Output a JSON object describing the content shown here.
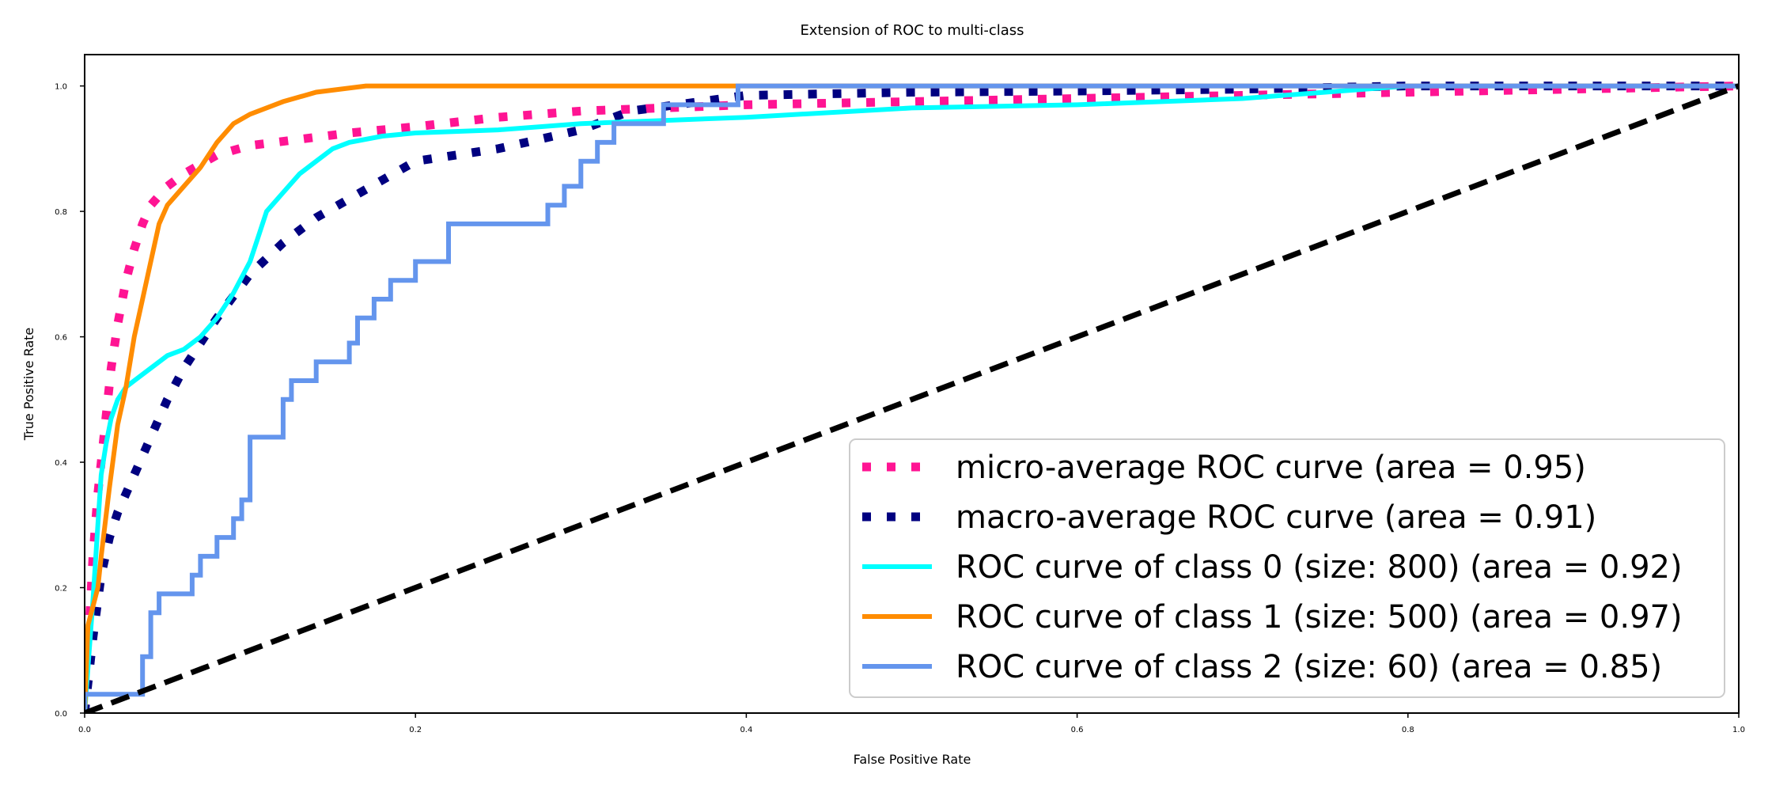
{
  "chart_data": {
    "type": "line",
    "title": "Extension of ROC to multi-class",
    "xlabel": "False Positive Rate",
    "ylabel": "True Positive Rate",
    "xlim": [
      0.0,
      1.0
    ],
    "ylim": [
      0.0,
      1.05
    ],
    "xticks": [
      "0.0",
      "0.2",
      "0.4",
      "0.6",
      "0.8",
      "1.0"
    ],
    "yticks": [
      "0.0",
      "0.2",
      "0.4",
      "0.6",
      "0.8",
      "1.0"
    ],
    "grid": false,
    "legend_position": "lower-right",
    "series": [
      {
        "name": "micro-average ROC curve (area = 0.95)",
        "color": "#ff1493",
        "style": "dotted",
        "x": [
          0.0,
          0.003,
          0.005,
          0.008,
          0.012,
          0.016,
          0.02,
          0.025,
          0.03,
          0.035,
          0.04,
          0.05,
          0.06,
          0.07,
          0.08,
          0.1,
          0.13,
          0.16,
          0.2,
          0.25,
          0.3,
          0.4,
          0.5,
          0.6,
          0.7,
          0.8,
          0.9,
          1.0
        ],
        "y": [
          0.0,
          0.15,
          0.25,
          0.35,
          0.45,
          0.55,
          0.62,
          0.69,
          0.74,
          0.78,
          0.81,
          0.84,
          0.86,
          0.875,
          0.89,
          0.905,
          0.915,
          0.925,
          0.935,
          0.95,
          0.96,
          0.97,
          0.975,
          0.98,
          0.985,
          0.99,
          0.995,
          1.0
        ]
      },
      {
        "name": "macro-average ROC curve (area = 0.91)",
        "color": "#000080",
        "style": "dotted",
        "x": [
          0.0,
          0.005,
          0.01,
          0.015,
          0.02,
          0.025,
          0.03,
          0.04,
          0.05,
          0.06,
          0.07,
          0.08,
          0.1,
          0.12,
          0.14,
          0.16,
          0.18,
          0.2,
          0.25,
          0.3,
          0.33,
          0.4,
          0.5,
          0.6,
          0.7,
          0.8,
          1.0
        ],
        "y": [
          0.0,
          0.12,
          0.22,
          0.28,
          0.32,
          0.35,
          0.38,
          0.44,
          0.5,
          0.55,
          0.59,
          0.63,
          0.7,
          0.75,
          0.79,
          0.82,
          0.85,
          0.88,
          0.9,
          0.93,
          0.96,
          0.985,
          0.99,
          0.992,
          0.995,
          1.0,
          1.0
        ]
      },
      {
        "name": "ROC curve of class 0 (size: 800) (area = 0.92)",
        "color": "#00ffff",
        "style": "solid",
        "x": [
          0.0,
          0.005,
          0.008,
          0.01,
          0.013,
          0.016,
          0.02,
          0.025,
          0.03,
          0.04,
          0.05,
          0.06,
          0.07,
          0.08,
          0.09,
          0.1,
          0.105,
          0.11,
          0.12,
          0.13,
          0.14,
          0.15,
          0.16,
          0.18,
          0.2,
          0.25,
          0.3,
          0.35,
          0.4,
          0.5,
          0.6,
          0.7,
          0.75,
          0.8,
          1.0
        ],
        "y": [
          0.0,
          0.18,
          0.3,
          0.38,
          0.43,
          0.47,
          0.5,
          0.52,
          0.53,
          0.55,
          0.57,
          0.58,
          0.6,
          0.63,
          0.67,
          0.72,
          0.76,
          0.8,
          0.83,
          0.86,
          0.88,
          0.9,
          0.91,
          0.92,
          0.925,
          0.93,
          0.94,
          0.945,
          0.95,
          0.965,
          0.97,
          0.98,
          0.99,
          1.0,
          1.0
        ]
      },
      {
        "name": "ROC curve of class 1 (size: 500) (area = 0.97)",
        "color": "#ff8c00",
        "style": "solid",
        "x": [
          0.0,
          0.002,
          0.005,
          0.008,
          0.01,
          0.015,
          0.02,
          0.025,
          0.03,
          0.035,
          0.04,
          0.045,
          0.05,
          0.06,
          0.07,
          0.075,
          0.08,
          0.09,
          0.1,
          0.12,
          0.14,
          0.17,
          0.2,
          0.3,
          0.4,
          1.0
        ],
        "y": [
          0.0,
          0.14,
          0.17,
          0.2,
          0.25,
          0.36,
          0.46,
          0.52,
          0.6,
          0.66,
          0.72,
          0.78,
          0.81,
          0.84,
          0.87,
          0.89,
          0.91,
          0.94,
          0.955,
          0.975,
          0.99,
          1.0,
          1.0,
          1.0,
          1.0,
          1.0
        ]
      },
      {
        "name": "ROC curve of class 2 (size: 60) (area = 0.85)",
        "color": "#6495ed",
        "style": "solid",
        "x": [
          0.0,
          0.0,
          0.035,
          0.035,
          0.04,
          0.04,
          0.045,
          0.045,
          0.065,
          0.065,
          0.07,
          0.07,
          0.08,
          0.08,
          0.09,
          0.09,
          0.095,
          0.095,
          0.1,
          0.1,
          0.12,
          0.12,
          0.125,
          0.125,
          0.14,
          0.14,
          0.16,
          0.16,
          0.165,
          0.165,
          0.175,
          0.175,
          0.185,
          0.185,
          0.2,
          0.2,
          0.22,
          0.22,
          0.28,
          0.28,
          0.29,
          0.29,
          0.3,
          0.3,
          0.31,
          0.31,
          0.32,
          0.32,
          0.35,
          0.35,
          0.395,
          0.395,
          1.0
        ],
        "y": [
          0.0,
          0.03,
          0.03,
          0.09,
          0.09,
          0.16,
          0.16,
          0.19,
          0.19,
          0.22,
          0.22,
          0.25,
          0.25,
          0.28,
          0.28,
          0.31,
          0.31,
          0.34,
          0.34,
          0.44,
          0.44,
          0.5,
          0.5,
          0.53,
          0.53,
          0.56,
          0.56,
          0.59,
          0.59,
          0.63,
          0.63,
          0.66,
          0.66,
          0.69,
          0.69,
          0.72,
          0.72,
          0.78,
          0.78,
          0.81,
          0.81,
          0.84,
          0.84,
          0.88,
          0.88,
          0.91,
          0.91,
          0.94,
          0.94,
          0.97,
          0.97,
          1.0,
          1.0
        ]
      },
      {
        "name": "",
        "color": "#000000",
        "style": "dashed",
        "x": [
          0.0,
          1.0
        ],
        "y": [
          0.0,
          1.0
        ]
      }
    ]
  }
}
